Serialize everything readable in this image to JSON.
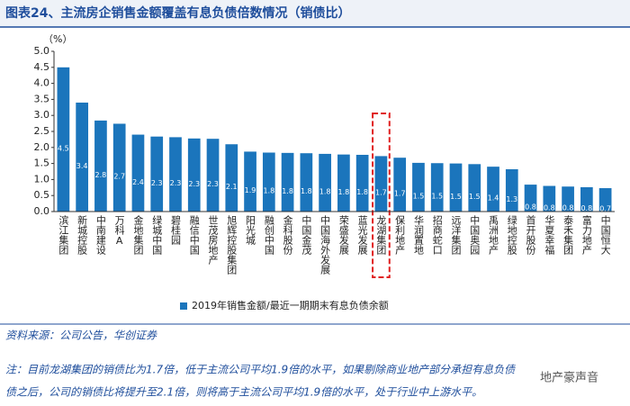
{
  "chart_data": {
    "type": "bar",
    "title": "图表24、主流房企销售金额覆盖有息负债倍数情况（销债比）",
    "y_label": "（%）",
    "categories": [
      "滨江集团",
      "新城控股",
      "中南建设",
      "万科A",
      "金地集团",
      "绿城中国",
      "碧桂园",
      "融信中国",
      "世茂房地产",
      "旭辉控股集团",
      "阳光城",
      "融创中国",
      "金科股份",
      "中国金茂",
      "中国海外发展",
      "荣盛发展",
      "蓝光发展",
      "龙湖集团",
      "保利地产",
      "华润置地",
      "招商蛇口",
      "远洋集团",
      "中国奥园",
      "禹洲地产",
      "绿地控股",
      "首开股份",
      "华夏幸福",
      "泰禾集团",
      "富力地产",
      "中国恒大"
    ],
    "series": [
      {
        "name": "2019年销售金额/最近一期期末有息负债余额",
        "color": "#1b75bc",
        "values": [
          4.5,
          3.4,
          2.84,
          2.74,
          2.4,
          2.34,
          2.32,
          2.28,
          2.27,
          2.1,
          1.87,
          1.84,
          1.83,
          1.82,
          1.8,
          1.78,
          1.77,
          1.73,
          1.68,
          1.52,
          1.51,
          1.5,
          1.48,
          1.4,
          1.32,
          0.84,
          0.8,
          0.78,
          0.76,
          0.73
        ],
        "value_labels": [
          "4.5",
          "3.4",
          "2.8",
          "2.7",
          "2.4",
          "2.3",
          "2.3",
          "2.3",
          "2.3",
          "2.1",
          "1.9",
          "1.8",
          "1.8",
          "1.8",
          "1.8",
          "1.8",
          "1.8",
          "1.7",
          "1.7",
          "1.5",
          "1.5",
          "1.5",
          "1.5",
          "1.4",
          "1.3",
          "0.8",
          "0.8",
          "0.8",
          "0.8",
          "0.7"
        ]
      }
    ],
    "ylim": [
      0,
      5
    ],
    "yticks": [
      {
        "value": 0,
        "label": "0.0"
      },
      {
        "value": 0.5,
        "label": "0.5"
      },
      {
        "value": 1,
        "label": "1.0"
      },
      {
        "value": 1.5,
        "label": "1.5"
      },
      {
        "value": 2,
        "label": "2.0"
      },
      {
        "value": 2.5,
        "label": "2.5"
      },
      {
        "value": 3,
        "label": "3.0"
      },
      {
        "value": 3.5,
        "label": "3.5"
      },
      {
        "value": 4,
        "label": "4.0"
      },
      {
        "value": 4.5,
        "label": "4.5"
      },
      {
        "value": 5,
        "label": "5.0"
      }
    ],
    "highlight": "龙湖集团",
    "source": "资料来源：公司公告，华创证券",
    "note": [
      "注：目前龙湖集团的销债比为1.7倍，低于主流公司平均1.9倍的水平，如果剔除商业地产部分承担有息负债",
      "债之后，公司的销债比将提升至2.1倍，则将高于主流公司平均1.9倍的水平，处于行业中上游水平。"
    ],
    "watermark": "地产豪声音"
  }
}
